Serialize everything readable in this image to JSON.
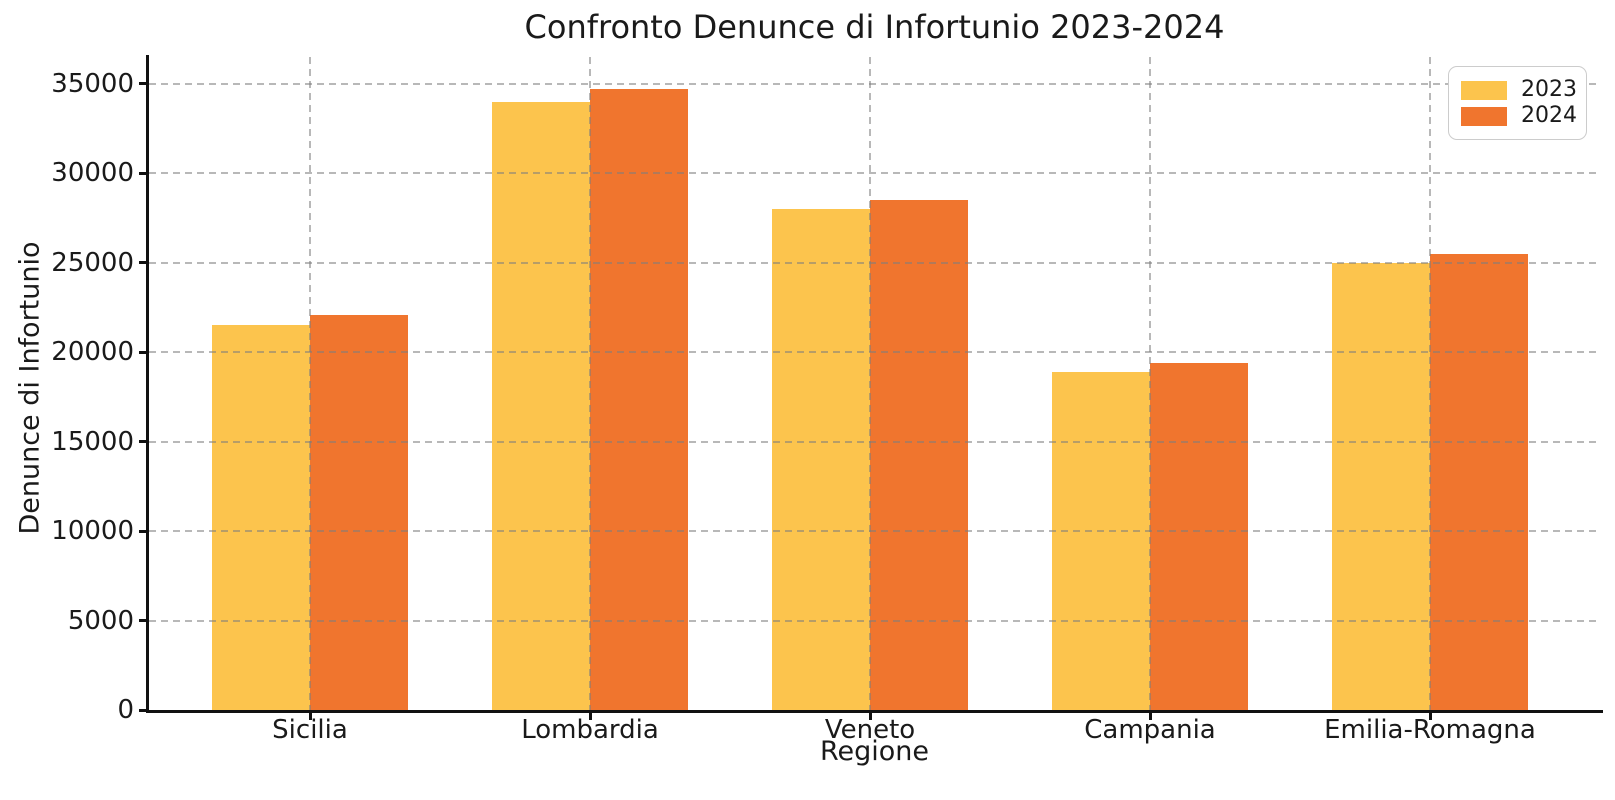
{
  "chart_data": {
    "type": "bar",
    "title": "Confronto Denunce di Infortunio 2023-2024",
    "xlabel": "Regione",
    "ylabel": "Denunce di Infortunio",
    "categories": [
      "Sicilia",
      "Lombardia",
      "Veneto",
      "Campania",
      "Emilia-Romagna"
    ],
    "series": [
      {
        "name": "2023",
        "color": "#FCC44D",
        "values": [
          21500,
          34000,
          28000,
          18900,
          25000
        ]
      },
      {
        "name": "2024",
        "color": "#F0752E",
        "values": [
          22100,
          34700,
          28500,
          19400,
          25500
        ]
      }
    ],
    "yticks": [
      0,
      5000,
      10000,
      15000,
      20000,
      25000,
      30000,
      35000
    ],
    "ylim": [
      0,
      36500
    ],
    "grid": "dashed gray, horizontal and vertical, drawn above bars",
    "grid_color": "#7d7d7d",
    "spine_color": "#111111",
    "legend_position": "top-right",
    "legend_labels": [
      "2023",
      "2024"
    ]
  }
}
